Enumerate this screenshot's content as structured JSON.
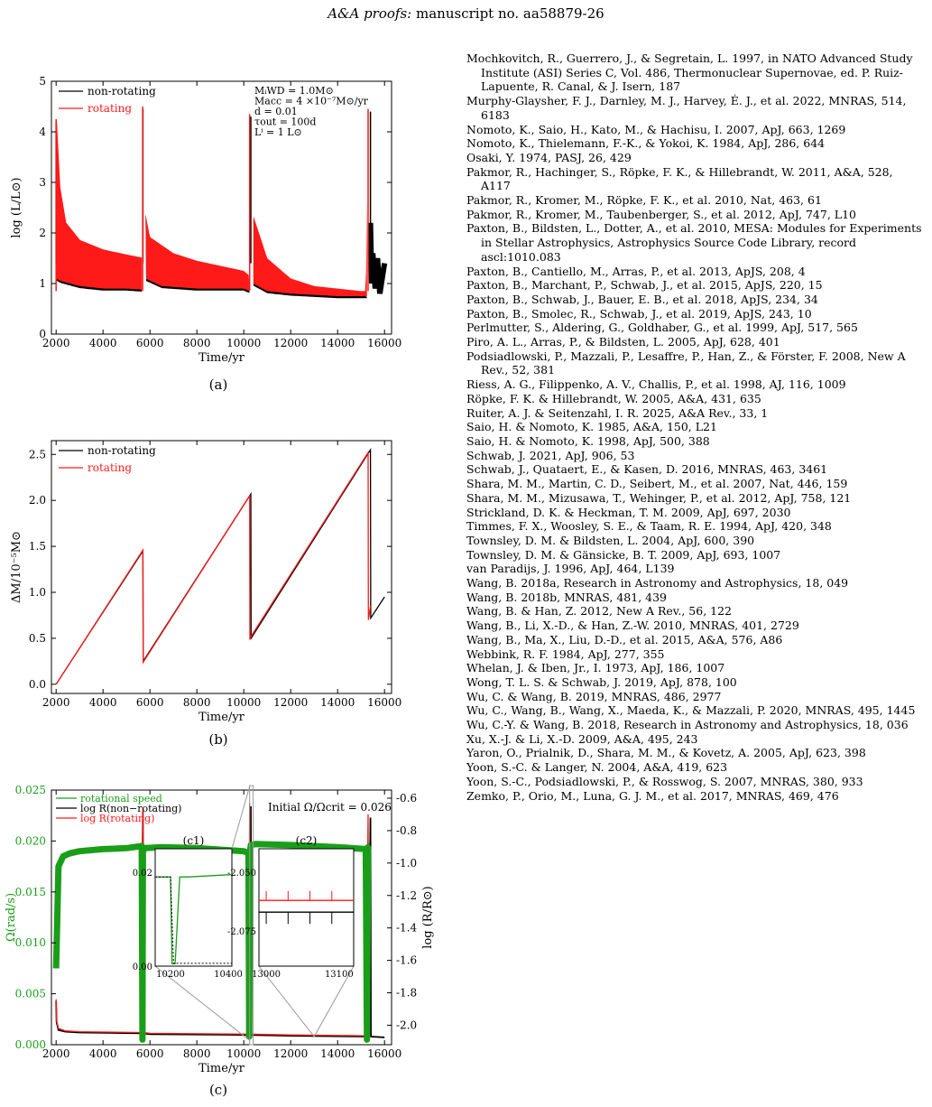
{
  "header": {
    "journal": "A&A proofs:",
    "rest": "manuscript no. aa58879-26"
  },
  "figures": {
    "a": {
      "caption": "(a)",
      "xlabel": "Time/yr",
      "ylabel": "log (L/L⊙)",
      "xticks": [
        "2000",
        "4000",
        "6000",
        "8000",
        "10000",
        "12000",
        "14000",
        "16000"
      ],
      "yticks": [
        "0",
        "1",
        "2",
        "3",
        "4",
        "5"
      ],
      "legend": [
        "non-rotating",
        "rotating"
      ],
      "params": [
        "MᵢWD = 1.0M⊙",
        "Macc = 4 ×10⁻⁷M⊙/yr",
        "d = 0.01",
        "τout = 100d",
        "Lⁱ = 1 L⊙"
      ]
    },
    "b": {
      "caption": "(b)",
      "xlabel": "Time/yr",
      "ylabel": "ΔM/10⁻⁵M⊙",
      "xticks": [
        "2000",
        "4000",
        "6000",
        "8000",
        "10000",
        "12000",
        "14000",
        "16000"
      ],
      "yticks": [
        "0.0",
        "0.5",
        "1.0",
        "1.5",
        "2.0",
        "2.5"
      ],
      "legend": [
        "non-rotating",
        "rotating"
      ]
    },
    "c": {
      "caption": "(c)",
      "xlabel": "Time/yr",
      "ylabel_left": "Ω(rad/s)",
      "ylabel_right": "log (R/R⊙)",
      "xticks": [
        "2000",
        "4000",
        "6000",
        "8000",
        "10000",
        "12000",
        "14000",
        "16000"
      ],
      "yticks_left": [
        "0.000",
        "0.005",
        "0.010",
        "0.015",
        "0.020",
        "0.025"
      ],
      "yticks_right": [
        "-0.6",
        "-0.8",
        "-1.0",
        "-1.2",
        "-1.4",
        "-1.6",
        "-1.8",
        "-2.0"
      ],
      "legend": [
        "rotational speed",
        "log R(non−rotating)",
        "log R(rotating)"
      ],
      "annotation": "Initial Ω/Ωcrit = 0.026",
      "inset1": {
        "title": "(c1)",
        "xticks": [
          "10200",
          "10400"
        ],
        "yticks": [
          "0.02",
          "0.00"
        ]
      },
      "inset2": {
        "title": "(c2)",
        "xticks": [
          "13000",
          "13100"
        ],
        "yticks": [
          "-2.050",
          "-2.075"
        ]
      }
    }
  },
  "chart_data": [
    {
      "type": "line",
      "title": "",
      "xlabel": "Time/yr",
      "ylabel": "log (L/L⊙)",
      "xlim": [
        1800,
        16300
      ],
      "ylim": [
        0,
        5
      ],
      "series": [
        {
          "name": "non-rotating",
          "x": [
            2000,
            2150,
            2400,
            3000,
            4000,
            5000,
            5650,
            5700,
            5800,
            6000,
            7000,
            8000,
            9000,
            10000,
            10250,
            10300,
            10400,
            11000,
            12000,
            13000,
            14000,
            15000,
            15300,
            15400,
            15500,
            15700,
            16000
          ],
          "y": [
            4.2,
            2.9,
            2.2,
            1.85,
            1.65,
            1.55,
            1.5,
            4.45,
            2.4,
            1.9,
            1.55,
            1.4,
            1.3,
            1.2,
            1.1,
            4.3,
            2.3,
            1.45,
            1.05,
            0.9,
            0.85,
            0.8,
            0.75,
            4.4,
            2.2,
            1.5,
            1.1
          ]
        },
        {
          "name": "rotating",
          "x": [
            2000,
            2150,
            2400,
            3000,
            4000,
            5000,
            5650,
            5700,
            5800,
            6000,
            7000,
            8000,
            9000,
            10000,
            10250,
            10300,
            10400,
            11000,
            12000,
            13000,
            14000,
            15000,
            15200,
            15300
          ],
          "y": [
            4.25,
            2.9,
            2.2,
            1.85,
            1.66,
            1.56,
            1.5,
            4.5,
            2.4,
            1.92,
            1.6,
            1.45,
            1.35,
            1.25,
            1.15,
            4.35,
            2.35,
            1.5,
            1.1,
            0.95,
            0.9,
            0.85,
            0.85,
            4.45
          ]
        }
      ],
      "band_min": {
        "x": [
          2000,
          2200,
          3000,
          4000,
          5000,
          5650,
          5800,
          6500,
          8000,
          10000,
          10250,
          10400,
          11000,
          12000,
          14000,
          15250
        ],
        "y": [
          1.1,
          1.05,
          0.95,
          0.9,
          0.9,
          0.88,
          1.1,
          0.95,
          0.9,
          0.9,
          0.85,
          1.0,
          0.85,
          0.8,
          0.75,
          0.75
        ]
      }
    },
    {
      "type": "line",
      "title": "",
      "xlabel": "Time/yr",
      "ylabel": "ΔM/10⁻⁵M⊙",
      "xlim": [
        1800,
        16300
      ],
      "ylim": [
        -0.1,
        2.65
      ],
      "series": [
        {
          "name": "non-rotating",
          "x": [
            2000,
            5700,
            5710,
            10300,
            10310,
            15400,
            15410,
            16000
          ],
          "y": [
            0.0,
            1.45,
            0.25,
            2.07,
            0.5,
            2.55,
            0.72,
            0.95
          ]
        },
        {
          "name": "rotating",
          "x": [
            2000,
            5700,
            5710,
            10250,
            10260,
            15300,
            15310,
            15400
          ],
          "y": [
            0.0,
            1.46,
            0.24,
            2.05,
            0.5,
            2.52,
            0.7,
            0.85
          ]
        }
      ]
    },
    {
      "type": "line",
      "title": "",
      "xlabel": "Time/yr",
      "ylabel": "Ω(rad/s)",
      "xlim": [
        1800,
        16300
      ],
      "ylim": [
        0,
        0.025
      ],
      "y2label": "log (R/R⊙)",
      "y2lim": [
        -2.12,
        -0.55
      ],
      "series": [
        {
          "name": "rotational speed",
          "axis": "left",
          "x": [
            2000,
            2100,
            2300,
            2600,
            3000,
            4000,
            5000,
            5650,
            5680,
            5700,
            5800,
            6500,
            8000,
            10000,
            10200,
            10230,
            10260,
            10300,
            10500,
            12000,
            14000,
            15200,
            15250,
            15300,
            15400
          ],
          "y": [
            0.0075,
            0.0175,
            0.0185,
            0.0188,
            0.019,
            0.0192,
            0.0193,
            0.0195,
            0.0005,
            0.019,
            0.0193,
            0.0194,
            0.0193,
            0.019,
            0.0188,
            0.0008,
            0.0189,
            0.0196,
            0.0197,
            0.0196,
            0.0194,
            0.0192,
            0.0005,
            0.0194,
            0.0195
          ]
        },
        {
          "name": "log R(non−rotating)",
          "axis": "right",
          "x": [
            2000,
            2020,
            2100,
            2400,
            3000,
            5600,
            5700,
            5720,
            6000,
            10200,
            10300,
            10320,
            12000,
            15300,
            15400,
            15420,
            16000
          ],
          "y": [
            -1.85,
            -1.98,
            -2.03,
            -2.04,
            -2.045,
            -2.05,
            -0.68,
            -2.05,
            -2.055,
            -2.06,
            -0.65,
            -2.06,
            -2.065,
            -2.07,
            -0.72,
            -2.07,
            -2.075
          ]
        },
        {
          "name": "log R(rotating)",
          "axis": "right",
          "x": [
            2000,
            2020,
            2100,
            2400,
            3000,
            5600,
            5700,
            5720,
            6000,
            10200,
            10250,
            10270,
            12000,
            15200,
            15300,
            15320,
            15400
          ],
          "y": [
            -1.84,
            -1.97,
            -2.02,
            -2.035,
            -2.04,
            -2.045,
            -0.66,
            -2.045,
            -2.05,
            -2.055,
            -0.63,
            -2.055,
            -2.06,
            -2.065,
            -0.7,
            -2.065,
            -2.07
          ]
        }
      ]
    }
  ],
  "references": [
    "Mochkovitch, R., Guerrero, J., & Segretain, L. 1997, in NATO Advanced Study Institute (ASI) Series C, Vol. 486, Thermonuclear Supernovae, ed. P. Ruiz-Lapuente, R. Canal, & J. Isern, 187",
    "Murphy-Glaysher, F. J., Darnley, M. J., Harvey, É. J., et al. 2022, MNRAS, 514, 6183",
    "Nomoto, K., Saio, H., Kato, M., & Hachisu, I. 2007, ApJ, 663, 1269",
    "Nomoto, K., Thielemann, F.-K., & Yokoi, K. 1984, ApJ, 286, 644",
    "Osaki, Y. 1974, PASJ, 26, 429",
    "Pakmor, R., Hachinger, S., Röpke, F. K., & Hillebrandt, W. 2011, A&A, 528, A117",
    "Pakmor, R., Kromer, M., Röpke, F. K., et al. 2010, Nat, 463, 61",
    "Pakmor, R., Kromer, M., Taubenberger, S., et al. 2012, ApJ, 747, L10",
    "Paxton, B., Bildsten, L., Dotter, A., et al. 2010, MESA: Modules for Experiments in Stellar Astrophysics, Astrophysics Source Code Library, record ascl:1010.083",
    "Paxton, B., Cantiello, M., Arras, P., et al. 2013, ApJS, 208, 4",
    "Paxton, B., Marchant, P., Schwab, J., et al. 2015, ApJS, 220, 15",
    "Paxton, B., Schwab, J., Bauer, E. B., et al. 2018, ApJS, 234, 34",
    "Paxton, B., Smolec, R., Schwab, J., et al. 2019, ApJS, 243, 10",
    "Perlmutter, S., Aldering, G., Goldhaber, G., et al. 1999, ApJ, 517, 565",
    "Piro, A. L., Arras, P., & Bildsten, L. 2005, ApJ, 628, 401",
    "Podsiadlowski, P., Mazzali, P., Lesaffre, P., Han, Z., & Förster, F. 2008, New A Rev., 52, 381",
    "Riess, A. G., Filippenko, A. V., Challis, P., et al. 1998, AJ, 116, 1009",
    "Röpke, F. K. & Hillebrandt, W. 2005, A&A, 431, 635",
    "Ruiter, A. J. & Seitenzahl, I. R. 2025, A&A Rev., 33, 1",
    "Saio, H. & Nomoto, K. 1985, A&A, 150, L21",
    "Saio, H. & Nomoto, K. 1998, ApJ, 500, 388",
    "Schwab, J. 2021, ApJ, 906, 53",
    "Schwab, J., Quataert, E., & Kasen, D. 2016, MNRAS, 463, 3461",
    "Shara, M. M., Martin, C. D., Seibert, M., et al. 2007, Nat, 446, 159",
    "Shara, M. M., Mizusawa, T., Wehinger, P., et al. 2012, ApJ, 758, 121",
    "Strickland, D. K. & Heckman, T. M. 2009, ApJ, 697, 2030",
    "Timmes, F. X., Woosley, S. E., & Taam, R. E. 1994, ApJ, 420, 348",
    "Townsley, D. M. & Bildsten, L. 2004, ApJ, 600, 390",
    "Townsley, D. M. & Gänsicke, B. T. 2009, ApJ, 693, 1007",
    "van Paradijs, J. 1996, ApJ, 464, L139",
    "Wang, B. 2018a, Research in Astronomy and Astrophysics, 18, 049",
    "Wang, B. 2018b, MNRAS, 481, 439",
    "Wang, B. & Han, Z. 2012, New A Rev., 56, 122",
    "Wang, B., Li, X.-D., & Han, Z.-W. 2010, MNRAS, 401, 2729",
    "Wang, B., Ma, X., Liu, D.-D., et al. 2015, A&A, 576, A86",
    "Webbink, R. F. 1984, ApJ, 277, 355",
    "Whelan, J. & Iben, Jr., I. 1973, ApJ, 186, 1007",
    "Wong, T. L. S. & Schwab, J. 2019, ApJ, 878, 100",
    "Wu, C. & Wang, B. 2019, MNRAS, 486, 2977",
    "Wu, C., Wang, B., Wang, X., Maeda, K., & Mazzali, P. 2020, MNRAS, 495, 1445",
    "Wu, C.-Y. & Wang, B. 2018, Research in Astronomy and Astrophysics, 18, 036",
    "Xu, X.-J. & Li, X.-D. 2009, A&A, 495, 243",
    "Yaron, O., Prialnik, D., Shara, M. M., & Kovetz, A. 2005, ApJ, 623, 398",
    "Yoon, S.-C. & Langer, N. 2004, A&A, 419, 623",
    "Yoon, S.-C., Podsiadlowski, P., & Rosswog, S. 2007, MNRAS, 380, 933",
    "Zemko, P., Orio, M., Luna, G. J. M., et al. 2017, MNRAS, 469, 476"
  ]
}
